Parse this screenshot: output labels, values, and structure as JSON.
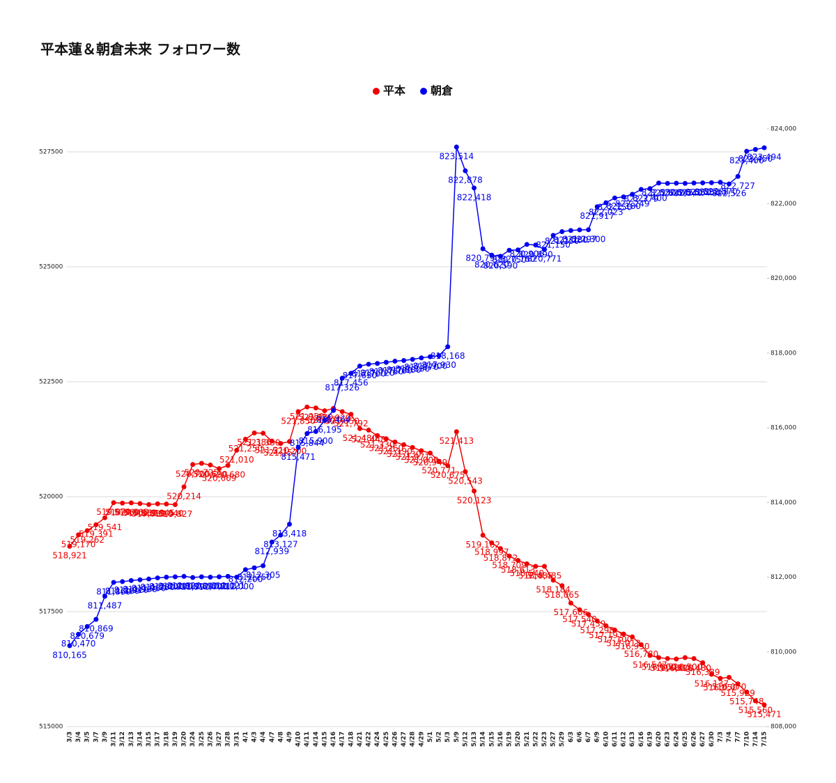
{
  "chart_data": {
    "type": "line",
    "title": "平本蓮＆朝倉未来 フォロワー数",
    "legend": "top",
    "categories": [
      "3/3",
      "3/4",
      "3/5",
      "3/7",
      "3/9",
      "3/11",
      "3/12",
      "3/13",
      "3/14",
      "3/15",
      "3/17",
      "3/18",
      "3/19",
      "3/20",
      "3/24",
      "3/25",
      "3/26",
      "3/27",
      "3/28",
      "3/31",
      "4/1",
      "4/3",
      "4/4",
      "4/7",
      "4/8",
      "4/9",
      "4/10",
      "4/11",
      "4/14",
      "4/15",
      "4/16",
      "4/17",
      "4/18",
      "4/21",
      "4/22",
      "4/24",
      "4/25",
      "4/26",
      "4/27",
      "4/28",
      "4/29",
      "5/1",
      "5/2",
      "5/3",
      "5/9",
      "5/12",
      "5/13",
      "5/14",
      "5/15",
      "5/16",
      "5/19",
      "5/20",
      "5/21",
      "5/22",
      "5/23",
      "5/27",
      "5/29",
      "6/3",
      "6/6",
      "6/7",
      "6/9",
      "6/10",
      "6/11",
      "6/12",
      "6/13",
      "6/16",
      "6/19",
      "6/20",
      "6/23",
      "6/24",
      "6/25",
      "6/26",
      "6/27",
      "6/30",
      "7/3",
      "7/4",
      "7/7",
      "7/10",
      "7/14",
      "7/15"
    ],
    "series": [
      {
        "name": "平本",
        "color": "#ee0000",
        "axis": "y",
        "values": [
          518921,
          519170,
          519262,
          519391,
          519541,
          519870,
          519860,
          519865,
          519850,
          519830,
          519845,
          519840,
          519827,
          520214,
          520700,
          520725,
          520690,
          520609,
          520680,
          521010,
          521250,
          521386,
          521380,
          521210,
          521157,
          521200,
          521850,
          521950,
          521930,
          521870,
          521920,
          521850,
          521792,
          521480,
          521448,
          521330,
          521260,
          521190,
          521130,
          521071,
          521000,
          520949,
          520771,
          520675,
          521413,
          520543,
          520123,
          519162,
          518997,
          518872,
          518709,
          518613,
          518540,
          518485,
          518485,
          518184,
          518065,
          517686,
          517540,
          517439,
          517298,
          517191,
          517100,
          517013,
          516950,
          516780,
          516547,
          516500,
          516480,
          516470,
          516500,
          516480,
          516389,
          516137,
          516050,
          516070,
          515929,
          515748,
          515560,
          515471
        ],
        "value_labels": [
          "518,921",
          "519,170",
          "519,262",
          "519,391",
          "519,541",
          "519,870",
          "519,860",
          "519,865",
          "519,850",
          "519,830",
          "519,845",
          "519,840",
          "519,827",
          "520,214",
          "520,700",
          "520,725",
          "520,690",
          "520,609",
          "520,680",
          "521,010",
          "521,250",
          "521,386",
          "521,380",
          "521,210",
          "521,157",
          "521,200",
          "521,850",
          "521,950",
          "521,930",
          "521,870",
          "521,920",
          "521,850",
          "521,792",
          "521,480",
          "521,448",
          "521,330",
          "521,260",
          "521,190",
          "521,130",
          "521,071",
          "521,000",
          "520,949",
          "520,771",
          "520,675",
          "521,413",
          "520,543",
          "520,123",
          "519,162",
          "518,997",
          "518,872",
          "518,709",
          "518,613",
          "518,540",
          "518,485",
          "518,485",
          "518,184",
          "518,065",
          "517,686",
          "517,540",
          "517,439",
          "517,298",
          "517,191",
          "517,100",
          "517,013",
          "516,950",
          "516,780",
          "516,547",
          "516,500",
          "516,480",
          "516,470",
          "516,500",
          "516,480",
          "516,389",
          "516,137",
          "516,050",
          "516,070",
          "515,929",
          "515,748",
          "515,560",
          "515,471"
        ]
      },
      {
        "name": "朝倉",
        "color": "#0000ee",
        "axis": "y2",
        "values": [
          810165,
          810470,
          810679,
          810869,
          811487,
          811860,
          811880,
          811910,
          811930,
          811950,
          811980,
          812000,
          812010,
          812020,
          811990,
          812010,
          812000,
          812010,
          812021,
          812000,
          812200,
          812250,
          812305,
          812939,
          813127,
          813418,
          815471,
          815844,
          815900,
          816195,
          816464,
          817326,
          817456,
          817650,
          817700,
          817720,
          817750,
          817780,
          817800,
          817830,
          817870,
          817900,
          817930,
          818168,
          823514,
          822878,
          822418,
          820790,
          820620,
          820590,
          820750,
          820760,
          820906,
          820890,
          820771,
          821150,
          821250,
          821280,
          821297,
          821300,
          821917,
          822023,
          822150,
          822180,
          822249,
          822379,
          822400,
          822550,
          822540,
          822545,
          822540,
          822550,
          822555,
          822560,
          822570,
          822526,
          822727,
          823400,
          823450,
          823494
        ],
        "value_labels": [
          "810,165",
          "810,470",
          "810,679",
          "810,869",
          "811,487",
          "811,860",
          "811,880",
          "811,910",
          "811,930",
          "811,950",
          "811,980",
          "812,000",
          "812,010",
          "812,020",
          "811,990",
          "812,010",
          "812,000",
          "812,010",
          "812,021",
          "812,000",
          "812,200",
          "812,250",
          "812,305",
          "812,939",
          "813,127",
          "813,418",
          "815,471",
          "815,844",
          "815,900",
          "816,195",
          "816,464",
          "817,326",
          "817,456",
          "817,650",
          "817,700",
          "817,720",
          "817,750",
          "817,780",
          "817,800",
          "817,830",
          "817,870",
          "817,900",
          "817,930",
          "818,168",
          "823,514",
          "822,878",
          "822,418",
          "820,790",
          "820,620",
          "820,590",
          "820,750",
          "820,760",
          "820,906",
          "820,890",
          "820,771",
          "821,150",
          "821,250",
          "821,280",
          "821,297",
          "821,300",
          "821,917",
          "822,023",
          "822,150",
          "822,180",
          "822,249",
          "822,379",
          "822,400",
          "822,550",
          "822,540",
          "822,545",
          "822,540",
          "822,550",
          "822,555",
          "822,560",
          "822,570",
          "822,526",
          "822,727",
          "823,400",
          "823,450",
          "823,494"
        ]
      }
    ],
    "ylim": [
      515000,
      528000
    ],
    "yticks": [
      515000,
      517500,
      520000,
      522500,
      525000,
      527500
    ],
    "y2lim": [
      808000,
      824000
    ],
    "y2ticks": [
      {
        "value": 808000,
        "label": "808,000"
      },
      {
        "value": 810000,
        "label": "810,000"
      },
      {
        "value": 812000,
        "label": "812,000"
      },
      {
        "value": 814000,
        "label": "814,000"
      },
      {
        "value": 816000,
        "label": "816,000"
      },
      {
        "value": 818000,
        "label": "818,000"
      },
      {
        "value": 820000,
        "label": "820,000"
      },
      {
        "value": 822000,
        "label": "822,000"
      },
      {
        "value": 824000,
        "label": "824,000"
      }
    ],
    "grid": true
  }
}
